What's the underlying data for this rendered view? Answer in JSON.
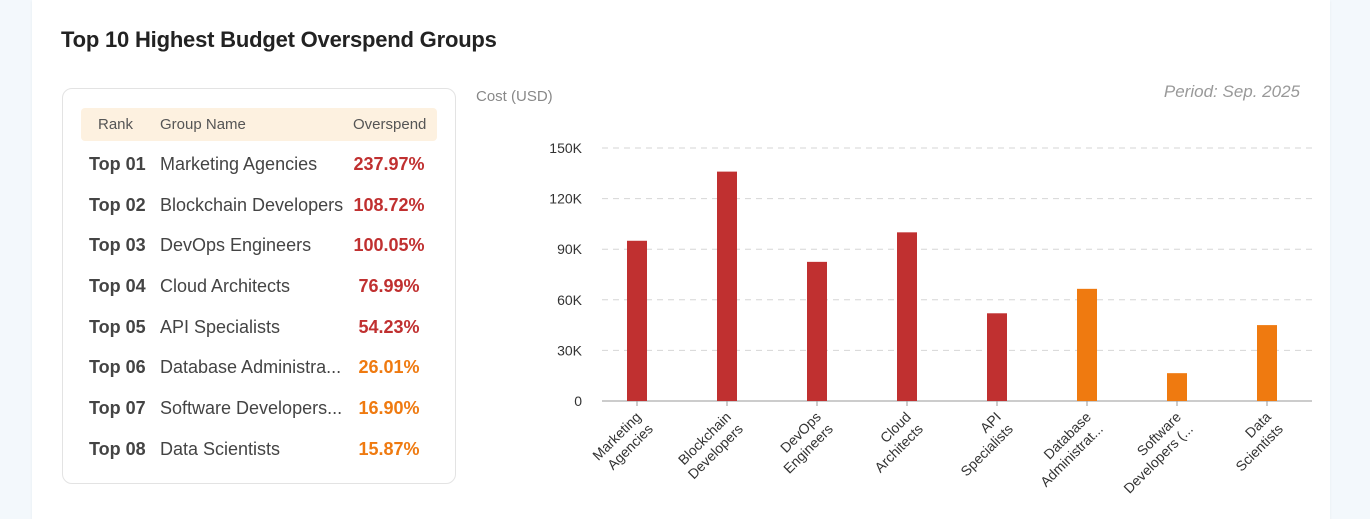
{
  "title": "Top 10 Highest Budget Overspend Groups",
  "ranking": {
    "headers": {
      "rank": "Rank",
      "name": "Group Name",
      "overspend": "Overspend"
    },
    "rows": [
      {
        "rank": "Top 01",
        "name": "Marketing Agencies",
        "overspend": "237.97%",
        "color": "#c03030"
      },
      {
        "rank": "Top 02",
        "name": "Blockchain Developers",
        "overspend": "108.72%",
        "color": "#c03030"
      },
      {
        "rank": "Top 03",
        "name": "DevOps Engineers",
        "overspend": "100.05%",
        "color": "#c03030"
      },
      {
        "rank": "Top 04",
        "name": "Cloud Architects",
        "overspend": "76.99%",
        "color": "#c03030"
      },
      {
        "rank": "Top 05",
        "name": "API Specialists",
        "overspend": "54.23%",
        "color": "#c03030"
      },
      {
        "rank": "Top 06",
        "name": "Database Administra...",
        "overspend": "26.01%",
        "color": "#ef7a10"
      },
      {
        "rank": "Top 07",
        "name": "Software Developers...",
        "overspend": "16.90%",
        "color": "#ef7a10"
      },
      {
        "rank": "Top 08",
        "name": "Data Scientists",
        "overspend": "15.87%",
        "color": "#ef7a10"
      }
    ]
  },
  "period": "Period: Sep. 2025",
  "colors": {
    "red": "#c03030",
    "orange": "#ef7a10"
  },
  "chart_data": {
    "type": "bar",
    "ylabel": "Cost (USD)",
    "ylim": [
      0,
      150000
    ],
    "yticks": [
      {
        "value": 0,
        "label": "0"
      },
      {
        "value": 30000,
        "label": "30K"
      },
      {
        "value": 60000,
        "label": "60K"
      },
      {
        "value": 90000,
        "label": "90K"
      },
      {
        "value": 120000,
        "label": "120K"
      },
      {
        "value": 150000,
        "label": "150K"
      }
    ],
    "grid": true,
    "categories": [
      [
        "Marketing",
        "Agencies"
      ],
      [
        "Blockchain",
        "Developers"
      ],
      [
        "DevOps",
        "Engineers"
      ],
      [
        "Cloud",
        "Architects"
      ],
      [
        "API",
        "Specialists"
      ],
      [
        "Database",
        "Administrat..."
      ],
      [
        "Software",
        "Developers (..."
      ],
      [
        "Data",
        "Scientists"
      ]
    ],
    "values": [
      95000,
      136000,
      82500,
      100000,
      52000,
      66500,
      16500,
      45000
    ],
    "bar_colors": [
      "#c03030",
      "#c03030",
      "#c03030",
      "#c03030",
      "#c03030",
      "#ef7a10",
      "#ef7a10",
      "#ef7a10"
    ]
  }
}
